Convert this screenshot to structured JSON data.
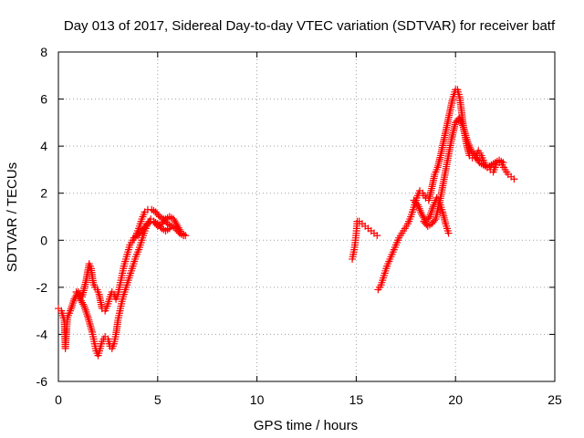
{
  "chart_data": {
    "type": "scatter",
    "title": "Day 013 of 2017, Sidereal Day-to-day VTEC variation (SDTVAR) for receiver batf",
    "xlabel": "GPS time / hours",
    "ylabel": "SDTVAR / TECUs",
    "xlim": [
      0,
      25
    ],
    "ylim": [
      -6,
      8
    ],
    "xticks": [
      "0",
      "5",
      "10",
      "15",
      "20",
      "25"
    ],
    "yticks": [
      "-6",
      "-4",
      "-2",
      "0",
      "2",
      "4",
      "6",
      "8"
    ],
    "grid": true,
    "marker": "plus",
    "color": "#ff0000",
    "series": [
      {
        "x": [
          0.0,
          0.15,
          0.3,
          0.35,
          0.45,
          0.6,
          0.8,
          1.0,
          1.2,
          1.4,
          1.55,
          1.65,
          1.75,
          1.85,
          1.95,
          2.05,
          2.2,
          2.35,
          2.5,
          2.6,
          2.7,
          2.8,
          2.9,
          3.0,
          3.1,
          3.2,
          3.3,
          3.4,
          3.5,
          3.6,
          3.75,
          3.9,
          4.05,
          4.2,
          4.35,
          4.5,
          4.7,
          4.9,
          5.1,
          5.3,
          5.5,
          5.7,
          5.9,
          6.1,
          6.3
        ],
        "y": [
          -2.9,
          -3.0,
          -3.4,
          -4.6,
          -3.3,
          -3.0,
          -2.5,
          -2.2,
          -2.4,
          -1.7,
          -1.0,
          -1.2,
          -1.8,
          -2.0,
          -2.1,
          -2.3,
          -2.9,
          -3.0,
          -2.7,
          -2.4,
          -2.2,
          -2.3,
          -2.5,
          -2.3,
          -1.9,
          -1.5,
          -1.1,
          -0.8,
          -0.5,
          -0.2,
          0.0,
          0.2,
          0.5,
          0.9,
          1.2,
          1.3,
          1.3,
          1.2,
          1.0,
          0.9,
          0.7,
          0.6,
          0.5,
          0.3,
          0.2
        ]
      },
      {
        "x": [
          0.9,
          1.1,
          1.3,
          1.5,
          1.7,
          1.8,
          1.9,
          2.0,
          2.1,
          2.2,
          2.35,
          2.5,
          2.6,
          2.7,
          2.8,
          2.9,
          3.0,
          3.1,
          3.2,
          3.3,
          3.45,
          3.6,
          3.75,
          3.9,
          4.05,
          4.2,
          4.35,
          4.5,
          4.65,
          4.8,
          5.0,
          5.2,
          5.4,
          5.6,
          5.8,
          6.0,
          6.2,
          6.4
        ],
        "y": [
          -2.2,
          -2.5,
          -2.8,
          -3.3,
          -3.9,
          -4.3,
          -4.7,
          -4.9,
          -4.6,
          -4.3,
          -4.1,
          -4.2,
          -4.5,
          -4.6,
          -4.4,
          -4.0,
          -3.4,
          -3.0,
          -2.6,
          -2.3,
          -1.9,
          -1.5,
          -1.1,
          -0.7,
          -0.4,
          0.0,
          0.4,
          0.7,
          0.9,
          0.8,
          0.6,
          0.7,
          0.9,
          1.0,
          0.9,
          0.6,
          0.3,
          0.2
        ]
      },
      {
        "x": [
          3.8,
          4.0,
          4.2,
          4.4,
          4.6,
          4.8,
          5.0,
          5.2,
          5.4,
          5.6
        ],
        "y": [
          0.1,
          0.2,
          0.4,
          0.6,
          0.8,
          0.8,
          0.7,
          0.5,
          0.4,
          0.5
        ]
      },
      {
        "x": [
          14.8,
          14.85,
          14.9,
          14.95,
          15.0,
          15.05,
          15.15,
          15.3,
          15.45,
          15.6,
          15.75,
          15.9,
          16.05
        ],
        "y": [
          -0.8,
          -0.6,
          -0.4,
          -0.1,
          0.3,
          0.8,
          0.8,
          0.7,
          0.6,
          0.5,
          0.4,
          0.3,
          0.2
        ]
      },
      {
        "x": [
          16.1,
          16.25,
          16.4,
          16.55,
          16.7,
          16.85,
          17.0,
          17.15,
          17.3,
          17.45,
          17.6,
          17.75,
          17.9,
          18.05,
          18.2,
          18.35,
          18.5,
          18.65,
          18.8,
          18.95,
          19.1,
          19.25,
          19.4,
          19.55,
          19.7,
          19.85,
          20.0,
          20.1,
          20.2,
          20.3,
          20.4,
          20.55,
          20.7,
          20.85,
          21.0,
          21.15,
          21.3,
          21.45,
          21.6,
          21.75,
          21.9,
          22.05,
          22.2,
          22.35,
          22.5,
          22.65,
          22.8,
          22.95
        ],
        "y": [
          -2.1,
          -1.9,
          -1.5,
          -1.1,
          -0.8,
          -0.5,
          -0.2,
          0.1,
          0.3,
          0.5,
          0.7,
          1.0,
          1.4,
          1.8,
          2.1,
          2.0,
          1.8,
          1.7,
          2.2,
          2.8,
          3.1,
          3.6,
          4.2,
          4.8,
          5.4,
          6.0,
          6.4,
          6.4,
          6.1,
          5.5,
          4.8,
          4.1,
          3.6,
          3.5,
          3.5,
          3.8,
          3.6,
          3.3,
          3.1,
          3.0,
          2.9,
          3.2,
          3.3,
          3.2,
          3.0,
          2.8,
          2.7,
          2.6
        ]
      },
      {
        "x": [
          17.9,
          18.1,
          18.3,
          18.5,
          18.7,
          18.9,
          19.05,
          19.2,
          19.35,
          19.5,
          19.65
        ],
        "y": [
          1.7,
          1.5,
          1.1,
          0.8,
          1.0,
          1.5,
          1.8,
          1.6,
          1.2,
          0.7,
          0.3
        ]
      },
      {
        "x": [
          18.4,
          18.6,
          18.8,
          19.0,
          19.2,
          19.4,
          19.6,
          19.8,
          20.0,
          20.2,
          20.4,
          20.6,
          20.8,
          21.0,
          21.2,
          21.4,
          21.6,
          21.8,
          22.0,
          22.2,
          22.4
        ],
        "y": [
          0.8,
          0.6,
          0.7,
          0.9,
          1.6,
          2.5,
          3.4,
          4.3,
          5.0,
          5.2,
          4.8,
          4.2,
          3.8,
          3.6,
          3.3,
          3.2,
          3.1,
          3.2,
          3.3,
          3.4,
          3.3
        ]
      }
    ]
  }
}
